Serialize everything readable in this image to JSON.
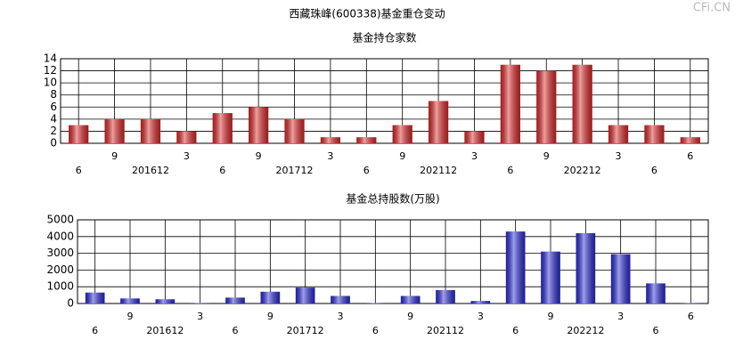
{
  "title": "西藏珠峰(600338)基金重仓变动",
  "watermark": "CFi.CN",
  "chart_data": [
    {
      "type": "bar",
      "title": "基金持仓家数",
      "categories": [
        "6",
        "9",
        "201612",
        "3",
        "6",
        "9",
        "201712",
        "3",
        "6",
        "9",
        "202112",
        "3",
        "6",
        "9",
        "202212",
        "3",
        "6",
        "6"
      ],
      "values": [
        3,
        4,
        4,
        2,
        5,
        6,
        4,
        1,
        1,
        3,
        7,
        2,
        13,
        12,
        13,
        3,
        3,
        1
      ],
      "color": "#e02828",
      "ylim": [
        0,
        14
      ],
      "yticks": [
        0,
        2,
        4,
        6,
        8,
        10,
        12,
        14
      ],
      "grid": true
    },
    {
      "type": "bar",
      "title": "基金总持股数(万股)",
      "categories": [
        "6",
        "9",
        "201612",
        "3",
        "6",
        "9",
        "201712",
        "3",
        "6",
        "9",
        "202112",
        "3",
        "6",
        "9",
        "202212",
        "3",
        "6",
        "6"
      ],
      "values": [
        650,
        300,
        250,
        30,
        350,
        700,
        950,
        450,
        30,
        450,
        800,
        150,
        4300,
        3100,
        4200,
        2950,
        1200,
        30
      ],
      "color": "#2a2ad8",
      "ylim": [
        0,
        5000
      ],
      "yticks": [
        0,
        1000,
        2000,
        3000,
        4000,
        5000
      ],
      "grid": true
    }
  ]
}
